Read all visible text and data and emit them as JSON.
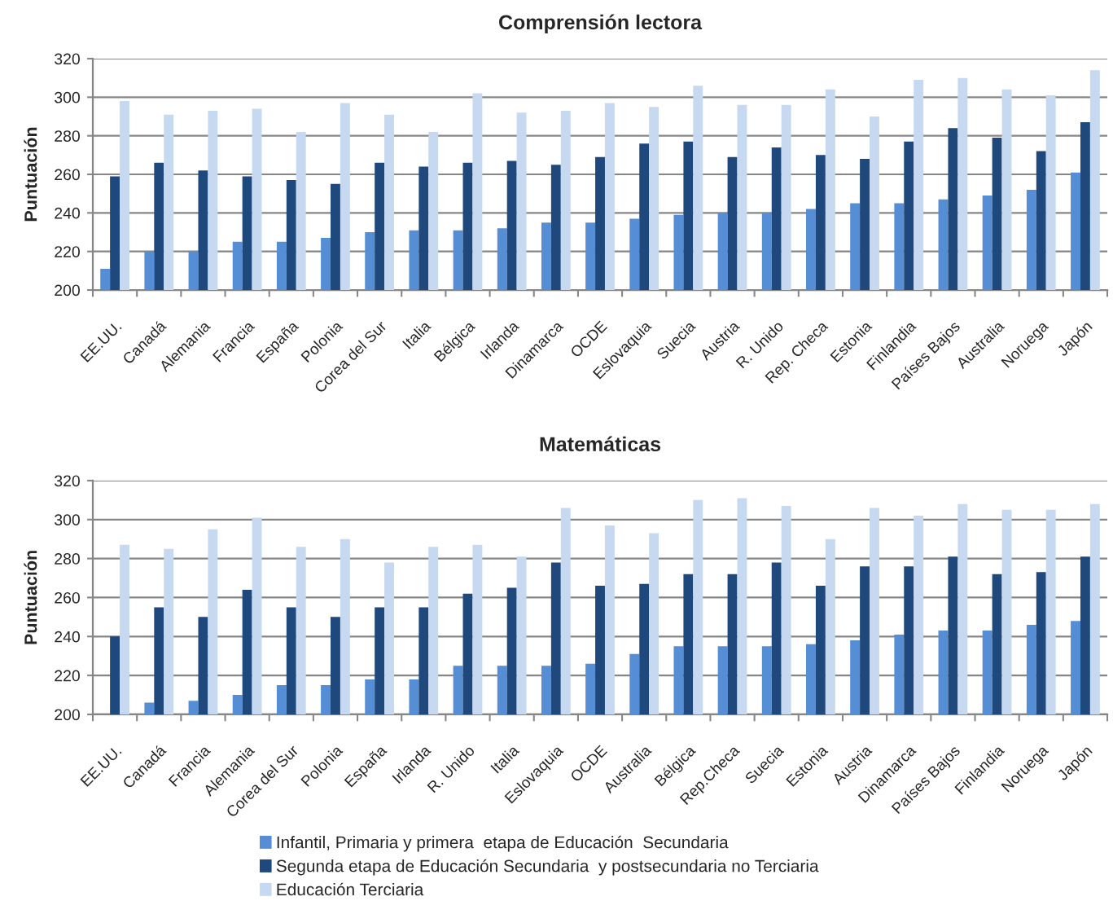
{
  "chart_data": [
    {
      "type": "bar",
      "title": "Comprensión lectora",
      "ylabel": "Puntuación",
      "categories": [
        "EE.UU.",
        "Canadá",
        "Alemania",
        "Francia",
        "España",
        "Polonia",
        "Corea del Sur",
        "Italia",
        "Bélgica",
        "Irlanda",
        "Dinamarca",
        "OCDE",
        "Eslovaquia",
        "Suecia",
        "Austria",
        "R. Unido",
        "Rep. Checa",
        "Estonia",
        "Finlandia",
        "Países Bajos",
        "Australia",
        "Noruega",
        "Japón"
      ],
      "series": [
        {
          "color": "#558ed5",
          "values": [
            211,
            220,
            220,
            225,
            225,
            227,
            230,
            231,
            231,
            232,
            235,
            235,
            237,
            239,
            240,
            240,
            242,
            245,
            245,
            247,
            249,
            252,
            261
          ]
        },
        {
          "color": "#1f497d",
          "values": [
            259,
            266,
            262,
            259,
            257,
            255,
            266,
            264,
            266,
            267,
            265,
            269,
            276,
            277,
            269,
            274,
            270,
            268,
            277,
            284,
            279,
            272,
            287
          ]
        },
        {
          "color": "#c6d9f1",
          "values": [
            298,
            291,
            293,
            294,
            282,
            297,
            291,
            282,
            302,
            292,
            293,
            297,
            295,
            306,
            296,
            296,
            304,
            290,
            309,
            310,
            304,
            301,
            314
          ]
        }
      ],
      "ylim": [
        200,
        320
      ],
      "yticks": [
        200,
        220,
        240,
        260,
        280,
        300,
        320
      ],
      "grid": "y"
    },
    {
      "type": "bar",
      "title": "Matemáticas",
      "ylabel": "Puntuación",
      "categories": [
        "EE.UU.",
        "Canadá",
        "Francia",
        "Alemania",
        "Corea del Sur",
        "Polonia",
        "España",
        "Irlanda",
        "R. Unido",
        "Italia",
        "Eslovaquia",
        "OCDE",
        "Australia",
        "Bélgica",
        "Rep.Checa",
        "Suecia",
        "Estonia",
        "Austria",
        "Dinamarca",
        "Países Bajos",
        "Finlandia",
        "Noruega",
        "Japón"
      ],
      "series": [
        {
          "name": "Infantil, Primaria y primera  etapa de Educación  Secundaria",
          "color": "#558ed5",
          "values": [
            null,
            206,
            207,
            210,
            215,
            215,
            218,
            218,
            225,
            225,
            225,
            226,
            231,
            235,
            235,
            235,
            236,
            238,
            241,
            243,
            243,
            246,
            248
          ]
        },
        {
          "name": "Segunda etapa de Educación Secundaria  y postsecundaria no Terciaria",
          "color": "#1f497d",
          "values": [
            240,
            255,
            250,
            264,
            255,
            250,
            255,
            255,
            262,
            265,
            278,
            266,
            267,
            272,
            272,
            278,
            266,
            276,
            276,
            281,
            272,
            273,
            281
          ]
        },
        {
          "name": "Educación Terciaria",
          "color": "#c6d9f1",
          "values": [
            287,
            285,
            295,
            301,
            286,
            290,
            278,
            286,
            287,
            281,
            306,
            297,
            293,
            310,
            311,
            307,
            290,
            306,
            302,
            308,
            305,
            305,
            308
          ]
        }
      ],
      "ylim": [
        200,
        320
      ],
      "yticks": [
        200,
        220,
        240,
        260,
        280,
        300,
        320
      ],
      "grid": "y",
      "legend": "bottom"
    }
  ]
}
